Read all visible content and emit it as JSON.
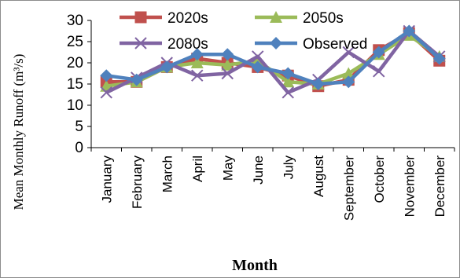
{
  "chart_data": {
    "type": "line",
    "xlabel": "Month",
    "ylabel": "Mean Monthly Runoff (m³/s)",
    "ylim": [
      0,
      30
    ],
    "yticks": [
      0,
      5,
      10,
      15,
      20,
      25,
      30
    ],
    "grid": false,
    "legend_position": "top",
    "categories": [
      "January",
      "February",
      "March",
      "April",
      "May",
      "June",
      "July",
      "August",
      "September",
      "October",
      "November",
      "December"
    ],
    "series": [
      {
        "name": "2020s",
        "color": "#C0504D",
        "marker": "square",
        "values": [
          15.5,
          15.5,
          19.0,
          21.0,
          20.0,
          19.0,
          17.0,
          14.5,
          16.0,
          23.0,
          27.0,
          20.5
        ]
      },
      {
        "name": "2050s",
        "color": "#9BBB59",
        "marker": "triangle",
        "values": [
          14.5,
          15.5,
          19.0,
          20.0,
          19.5,
          20.5,
          15.5,
          15.0,
          17.5,
          22.0,
          26.5,
          21.5
        ]
      },
      {
        "name": "2080s",
        "color": "#8064A2",
        "marker": "x",
        "values": [
          13.0,
          16.5,
          20.0,
          17.0,
          17.5,
          21.5,
          13.0,
          16.0,
          22.5,
          18.0,
          27.5,
          21.5
        ]
      },
      {
        "name": "Observed",
        "color": "#4F81BD",
        "marker": "diamond",
        "values": [
          17.0,
          16.0,
          19.0,
          22.0,
          22.0,
          19.0,
          17.5,
          15.0,
          15.5,
          22.5,
          27.5,
          21.0
        ]
      }
    ]
  }
}
